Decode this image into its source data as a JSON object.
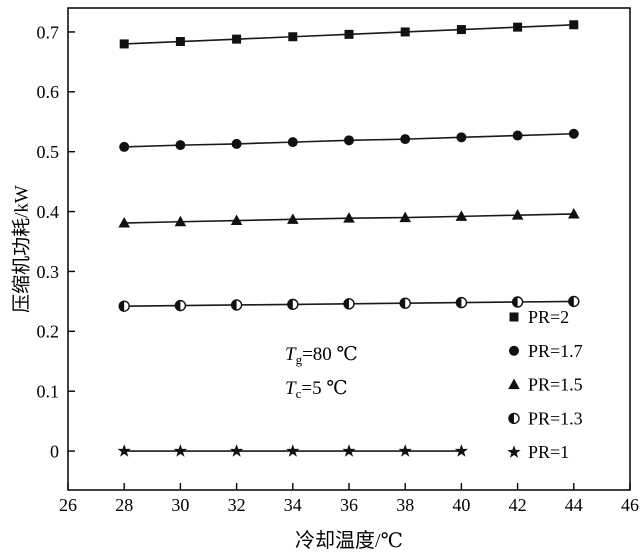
{
  "chart_data": {
    "type": "line",
    "title": "",
    "xlabel": "冷却温度/℃",
    "ylabel": "压缩机功耗/kW",
    "xlim": [
      26,
      46
    ],
    "ylim": [
      -0.065,
      0.74
    ],
    "xticks": [
      26,
      28,
      30,
      32,
      34,
      36,
      38,
      40,
      42,
      44,
      46
    ],
    "yticks": [
      0,
      0.1,
      0.2,
      0.3,
      0.4,
      0.5,
      0.6,
      0.7
    ],
    "ytick_labels": [
      "0",
      "0.1",
      "0.2",
      "0.3",
      "0.4",
      "0.5",
      "0.6",
      "0.7"
    ],
    "grid": false,
    "legend_position": "inside-right-bottom",
    "x": [
      28,
      30,
      32,
      34,
      36,
      38,
      40,
      42,
      44
    ],
    "series": [
      {
        "name": "PR=2",
        "marker": "square",
        "values": [
          0.68,
          0.684,
          0.688,
          0.692,
          0.696,
          0.7,
          0.704,
          0.708,
          0.712
        ]
      },
      {
        "name": "PR=1.7",
        "marker": "circle",
        "values": [
          0.508,
          0.511,
          0.513,
          0.516,
          0.519,
          0.521,
          0.524,
          0.527,
          0.53
        ]
      },
      {
        "name": "PR=1.5",
        "marker": "triangle",
        "values": [
          0.381,
          0.383,
          0.385,
          0.387,
          0.389,
          0.39,
          0.392,
          0.394,
          0.396
        ]
      },
      {
        "name": "PR=1.3",
        "marker": "half-circle",
        "values": [
          0.242,
          0.243,
          0.244,
          0.245,
          0.246,
          0.247,
          0.248,
          0.249,
          0.25
        ]
      },
      {
        "name": "PR=1",
        "marker": "star",
        "x": [
          28,
          30,
          32,
          34,
          36,
          38,
          40
        ],
        "values": [
          0,
          0,
          0,
          0,
          0,
          0,
          0
        ]
      }
    ],
    "annotations": [
      {
        "symbol": "T",
        "subscript": "g",
        "text": "=80 ℃"
      },
      {
        "symbol": "T",
        "subscript": "c",
        "text": "=5 ℃"
      }
    ],
    "colors": {
      "line": "#1a1a1a",
      "marker": "#111111",
      "axis": "#000000",
      "background": "#ffffff"
    }
  }
}
